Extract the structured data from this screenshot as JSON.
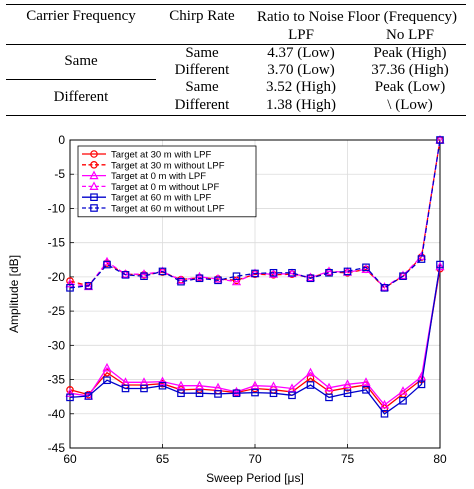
{
  "table": {
    "headers": {
      "carrier_frequency": "Carrier Frequency",
      "chirp_rate": "Chirp Rate",
      "ratio_title": "Ratio to Noise Floor (Frequency)",
      "lpf": "LPF",
      "no_lpf": "No LPF"
    },
    "groups": [
      {
        "carrier": "Same",
        "rows": [
          {
            "chirp": "Same",
            "lpf": "4.37 (Low)",
            "no_lpf": "Peak (High)"
          },
          {
            "chirp": "Different",
            "lpf": "3.70 (Low)",
            "no_lpf": "37.36 (High)"
          }
        ]
      },
      {
        "carrier": "Different",
        "rows": [
          {
            "chirp": "Same",
            "lpf": "3.52 (High)",
            "no_lpf": "Peak (Low)"
          },
          {
            "chirp": "Different",
            "lpf": "1.38 (High)",
            "no_lpf": "\\ (Low)"
          }
        ]
      }
    ]
  },
  "chart_data": {
    "type": "line",
    "xlabel": "Sweep Period [μs]",
    "ylabel": "Amplitude [dB]",
    "xlim": [
      60,
      80
    ],
    "ylim": [
      -45,
      0
    ],
    "xticks": [
      60,
      65,
      70,
      75,
      80
    ],
    "yticks": [
      0,
      -5,
      -10,
      -15,
      -20,
      -25,
      -30,
      -35,
      -40,
      -45
    ],
    "grid": true,
    "legend_position": "top-left",
    "x": [
      60,
      61,
      62,
      63,
      64,
      65,
      66,
      67,
      68,
      69,
      70,
      71,
      72,
      73,
      74,
      75,
      76,
      77,
      78,
      79,
      80
    ],
    "series": [
      {
        "name": "Target at 30 m  with LPF",
        "color": "#ff0000",
        "dash": "solid",
        "marker": "circle",
        "values": [
          -36.5,
          -37.2,
          -34.0,
          -35.8,
          -35.8,
          -35.6,
          -36.5,
          -36.4,
          -36.6,
          -36.9,
          -36.3,
          -36.5,
          -36.8,
          -34.8,
          -36.7,
          -36.2,
          -35.8,
          -39.2,
          -37.1,
          -35.0,
          -18.8
        ]
      },
      {
        "name": "Target at 30 m  without LPF",
        "color": "#ff0000",
        "dash": "dashed",
        "marker": "circle",
        "values": [
          -20.6,
          -21.3,
          -18.0,
          -19.6,
          -19.7,
          -19.3,
          -20.4,
          -20.1,
          -20.3,
          -20.5,
          -19.6,
          -19.7,
          -19.6,
          -20.1,
          -19.3,
          -19.4,
          -18.9,
          -21.6,
          -19.9,
          -17.1,
          0.0
        ]
      },
      {
        "name": "Target at 0 m  with LPF",
        "color": "#ff00ff",
        "dash": "solid",
        "marker": "triangle",
        "values": [
          -37.0,
          -37.4,
          -33.3,
          -35.4,
          -35.4,
          -35.3,
          -35.9,
          -35.9,
          -36.2,
          -36.8,
          -35.9,
          -36.0,
          -36.3,
          -34.0,
          -36.2,
          -35.7,
          -35.4,
          -38.7,
          -36.7,
          -34.6,
          -18.5
        ]
      },
      {
        "name": "Target at 0 m  without LPF",
        "color": "#ff00ff",
        "dash": "dashed",
        "marker": "triangle",
        "values": [
          -21.0,
          -21.4,
          -17.8,
          -19.6,
          -19.6,
          -19.2,
          -20.5,
          -20.0,
          -20.3,
          -20.7,
          -19.5,
          -19.6,
          -19.5,
          -20.1,
          -19.2,
          -19.3,
          -18.9,
          -21.5,
          -19.8,
          -17.0,
          0.0
        ]
      },
      {
        "name": "Target at 60 m  with LPF",
        "color": "#0000cc",
        "dash": "solid",
        "marker": "square",
        "values": [
          -37.6,
          -37.4,
          -35.1,
          -36.3,
          -36.3,
          -35.9,
          -37.0,
          -37.0,
          -37.1,
          -37.0,
          -36.9,
          -37.0,
          -37.3,
          -35.8,
          -37.6,
          -37.0,
          -36.5,
          -40.0,
          -38.1,
          -35.7,
          -18.2
        ]
      },
      {
        "name": "Target at 60 m  without LPF",
        "color": "#0000cc",
        "dash": "dashed",
        "marker": "square",
        "values": [
          -21.6,
          -21.3,
          -18.2,
          -19.7,
          -19.9,
          -19.2,
          -20.7,
          -20.2,
          -20.5,
          -19.9,
          -19.5,
          -19.4,
          -19.4,
          -20.2,
          -19.4,
          -19.2,
          -18.6,
          -21.6,
          -19.9,
          -17.4,
          0.0
        ]
      }
    ]
  }
}
